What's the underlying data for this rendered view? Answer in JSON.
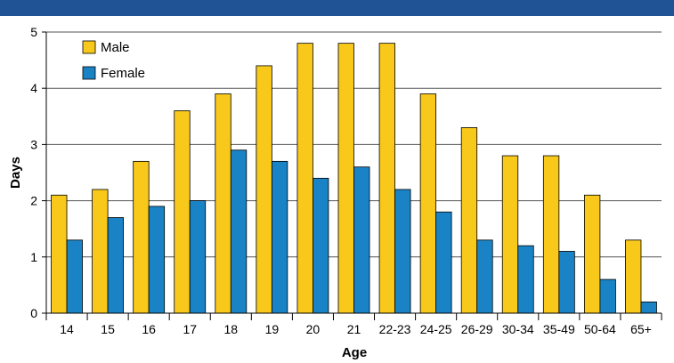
{
  "title_banner": {
    "color": "#1f5396",
    "visible_text": ""
  },
  "chart_data": {
    "type": "bar",
    "title": "",
    "xlabel": "Age",
    "ylabel": "Days",
    "ylim": [
      0,
      5
    ],
    "yticks": [
      "0",
      "1",
      "2",
      "3",
      "4",
      "5"
    ],
    "grid": "horizontal",
    "legend_position": "top-left",
    "categories": [
      "14",
      "15",
      "16",
      "17",
      "18",
      "19",
      "20",
      "21",
      "22-23",
      "24-25",
      "26-29",
      "30-34",
      "35-49",
      "50-64",
      "65+"
    ],
    "series": [
      {
        "name": "Male",
        "color": "#f8c81a",
        "values": [
          2.1,
          2.2,
          2.7,
          3.6,
          3.9,
          4.4,
          4.8,
          4.8,
          4.8,
          3.9,
          3.3,
          2.8,
          2.8,
          2.1,
          1.3
        ]
      },
      {
        "name": "Female",
        "color": "#1a83c6",
        "values": [
          1.3,
          1.7,
          1.9,
          2.0,
          2.9,
          2.7,
          2.4,
          2.6,
          2.2,
          1.8,
          1.3,
          1.2,
          1.1,
          0.6,
          0.2
        ]
      }
    ]
  }
}
